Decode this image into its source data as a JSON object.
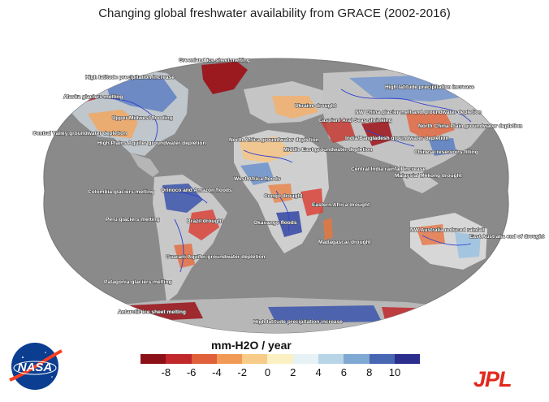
{
  "title": "Changing global freshwater availability from GRACE (2002-2016)",
  "legend": {
    "title": "mm-H2O / year",
    "ticks": [
      "-8",
      "-6",
      "-4",
      "-2",
      "0",
      "2",
      "4",
      "6",
      "8",
      "10"
    ],
    "colors": [
      "#8c1018",
      "#c0282b",
      "#e0603a",
      "#f09a56",
      "#f6cc88",
      "#fbf0c2",
      "#e6f2f6",
      "#b8d5e8",
      "#7fa9d3",
      "#4867b2",
      "#2b2e8c"
    ]
  },
  "map_colors": {
    "ocean": "#8a8a8a",
    "land": "#aaaaaa",
    "rivers": "#2f3fd0"
  },
  "annotations": [
    "Greenland ice sheet melting",
    "High latitude precipitation increase",
    "Alaska glaciers melting",
    "Upper Midwest flooding",
    "Central Valley groundwater depletion",
    "High Plains Aquifer groundwater depletion",
    "Ukraine drought",
    "Caspian/ Aral Seas shrinking",
    "NW China glacier melt and groundwater depletion",
    "High latitude precipitation increase",
    "North China Plain groundwater depletion",
    "India/Bangladesh groundwater depletion",
    "North Africa groundwater depletion",
    "Middle East groundwater depletion",
    "Central India rainfall increase",
    "Chinese reservoirs filling",
    "Malaysia/ Mekong drought",
    "West Africa floods",
    "Congo drought",
    "Eastern Africa drought",
    "Colombia glaciers melting",
    "Orinoco and Amazon floods",
    "Peru glaciers melting",
    "Brazil drought",
    "Okavango floods",
    "Madagascar drought",
    "NW Australia reduced rainfall",
    "East Australia end of drought",
    "Guarani Aquifer groundwater depletion",
    "Patagonia glaciers melting",
    "Antarctic ice sheet melting",
    "High latitude precipitation increase"
  ],
  "logos": {
    "nasa": "NASA",
    "jpl": "JPL"
  }
}
